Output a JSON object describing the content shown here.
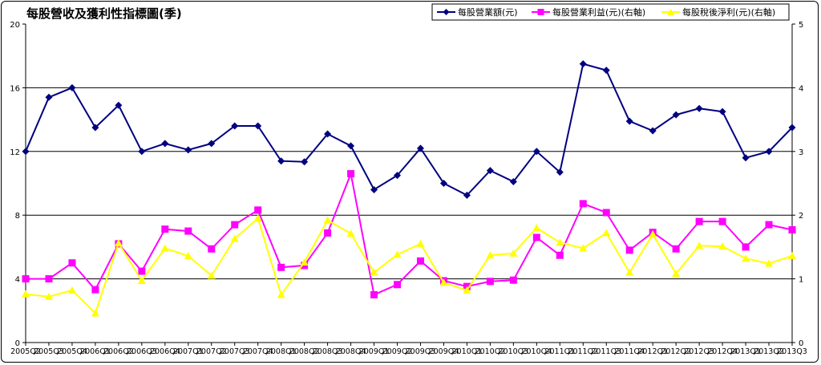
{
  "chart_data": {
    "type": "line",
    "title": "每股營收及獲利性指標圖(季)",
    "xlabel": "",
    "ylabel": "",
    "y_left": {
      "min": 0,
      "max": 20,
      "ticks": [
        0,
        4,
        8,
        12,
        16,
        20
      ]
    },
    "y_right": {
      "min": 0,
      "max": 5,
      "ticks": [
        0,
        1,
        2,
        3,
        4,
        5
      ]
    },
    "grid": true,
    "legend_position": "top-right",
    "categories": [
      "2005Q2",
      "2005Q3",
      "2005Q4",
      "2006Q1",
      "2006Q2",
      "2006Q3",
      "2006Q4",
      "2007Q1",
      "2007Q2",
      "2007Q3",
      "2007Q4",
      "2008Q1",
      "2008Q2",
      "2008Q3",
      "2008Q4",
      "2009Q1",
      "2009Q2",
      "2009Q3",
      "2009Q4",
      "2010Q1",
      "2010Q2",
      "2010Q3",
      "2010Q4",
      "2011Q1",
      "2011Q2",
      "2011Q3",
      "2011Q4",
      "2012Q1",
      "2012Q2",
      "2012Q3",
      "2012Q4",
      "2013Q1",
      "2013Q2",
      "2013Q3"
    ],
    "series": [
      {
        "name": "每股營業額(元)",
        "axis": "left",
        "color": "#000080",
        "marker": "diamond",
        "values": [
          12.0,
          15.4,
          16.0,
          13.5,
          14.9,
          12.0,
          12.5,
          12.1,
          12.5,
          13.6,
          13.6,
          11.4,
          11.35,
          13.1,
          12.35,
          9.6,
          10.5,
          12.2,
          10.0,
          9.25,
          10.8,
          10.1,
          12.0,
          10.7,
          17.5,
          17.1,
          13.9,
          13.3,
          14.3,
          14.7,
          14.5,
          11.6,
          12.0,
          13.5
        ]
      },
      {
        "name": "每股營業利益(元)(右軸)",
        "axis": "right",
        "color": "#FF00FF",
        "marker": "square",
        "values": [
          1.0,
          1.0,
          1.25,
          0.83,
          1.55,
          1.12,
          1.78,
          1.75,
          1.47,
          1.85,
          2.08,
          1.18,
          1.21,
          1.72,
          2.65,
          0.75,
          0.91,
          1.28,
          0.97,
          0.88,
          0.96,
          0.98,
          1.65,
          1.37,
          2.18,
          2.04,
          1.45,
          1.73,
          1.47,
          1.9,
          1.9,
          1.5,
          1.85,
          1.77
        ]
      },
      {
        "name": "每股稅後淨利(元)(右軸)",
        "axis": "right",
        "color": "#FFFF00",
        "marker": "triangle",
        "values": [
          0.76,
          0.72,
          0.82,
          0.46,
          1.56,
          0.97,
          1.48,
          1.36,
          1.05,
          1.63,
          1.95,
          0.75,
          1.26,
          1.92,
          1.71,
          1.1,
          1.38,
          1.55,
          0.94,
          0.82,
          1.37,
          1.4,
          1.8,
          1.57,
          1.48,
          1.72,
          1.1,
          1.7,
          1.08,
          1.52,
          1.51,
          1.32,
          1.24,
          1.36
        ]
      }
    ]
  }
}
